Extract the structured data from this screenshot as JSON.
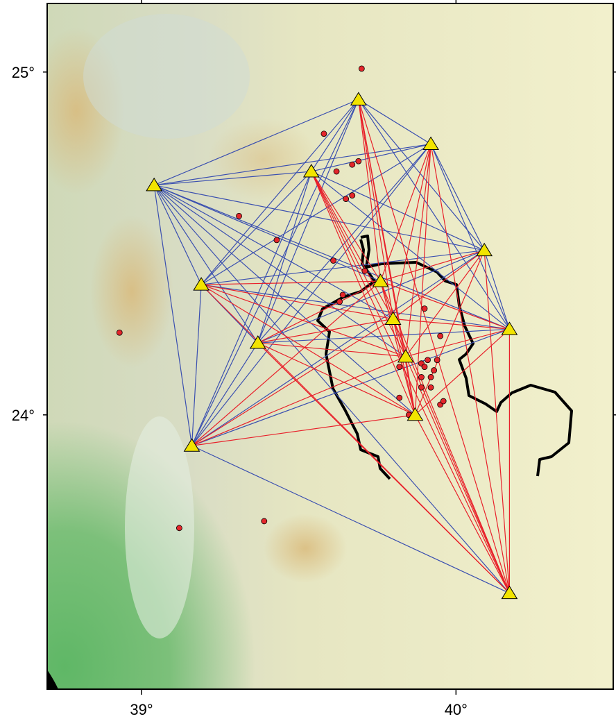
{
  "map": {
    "lon_range": [
      38.7,
      40.5
    ],
    "lat_range": [
      23.2,
      25.2
    ],
    "lon_ticks": [
      {
        "value": 39,
        "label": "39°"
      },
      {
        "value": 40,
        "label": "40°"
      }
    ],
    "lat_ticks": [
      {
        "value": 25,
        "label": "25°"
      },
      {
        "value": 24,
        "label": "24°"
      }
    ],
    "stations": {
      "lon": [
        39.69,
        39.92,
        39.54,
        39.04,
        40.09,
        39.76,
        39.19,
        39.8,
        40.17,
        39.37,
        39.84,
        39.87,
        39.16,
        40.17
      ],
      "lat": [
        24.92,
        24.79,
        24.71,
        24.67,
        24.48,
        24.39,
        24.38,
        24.28,
        24.25,
        24.21,
        24.17,
        24.0,
        23.91,
        23.48
      ]
    },
    "events": {
      "lon": [
        39.7,
        39.58,
        39.67,
        39.69,
        39.62,
        39.67,
        39.65,
        39.31,
        39.43,
        39.61,
        39.71,
        39.64,
        39.63,
        39.9,
        38.93,
        39.95,
        39.82,
        39.89,
        39.91,
        39.94,
        39.93,
        39.89,
        39.92,
        39.89,
        39.92,
        39.82,
        39.95,
        39.96,
        39.85,
        39.12,
        39.39,
        39.9
      ],
      "lat": [
        25.01,
        24.82,
        24.73,
        24.74,
        24.71,
        24.64,
        24.63,
        24.58,
        24.51,
        24.45,
        24.42,
        24.35,
        24.33,
        24.31,
        24.24,
        24.23,
        24.14,
        24.15,
        24.16,
        24.16,
        24.13,
        24.11,
        24.11,
        24.08,
        24.08,
        24.05,
        24.03,
        24.04,
        24.0,
        23.67,
        23.69,
        24.14
      ]
    }
  }
}
